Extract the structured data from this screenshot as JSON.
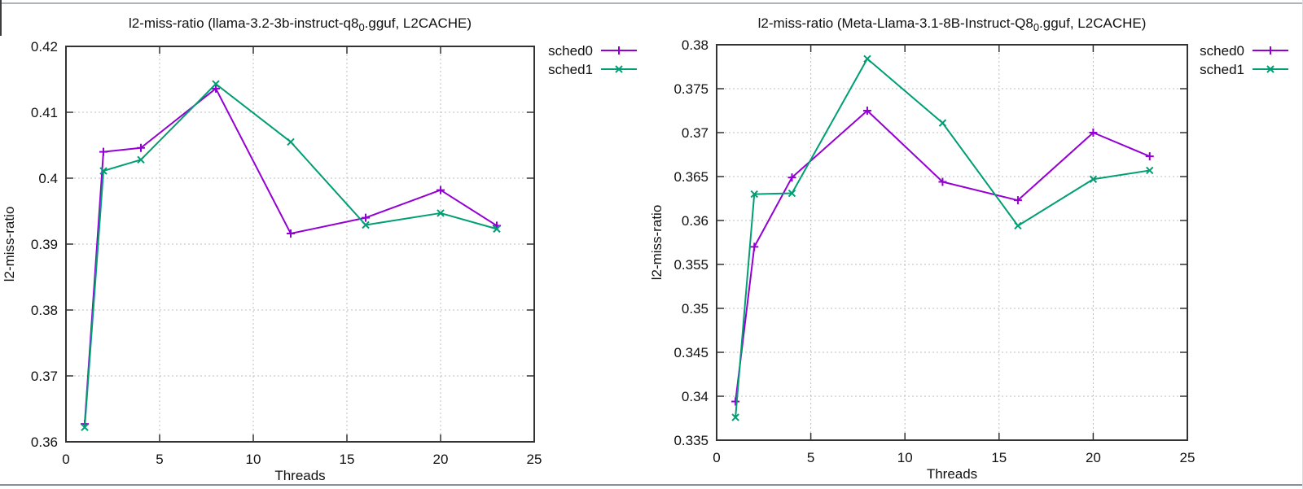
{
  "page": {
    "background": "#ffffff",
    "frame": {
      "top_line_color": "#adb4ba",
      "bottom_line_color": "#84919d",
      "left_edge_color": "#3c3c3c",
      "right_edge_color": "#d9dcde"
    }
  },
  "chart_data": [
    {
      "type": "line",
      "title": "l2-miss-ratio (llama-3.2-3b-instruct-q8_0.gguf, L2CACHE)",
      "title_pre": "l2-miss-ratio (llama-3.2-3b-instruct-q8",
      "title_sub": "0",
      "title_post": ".gguf, L2CACHE)",
      "xlabel": "Threads",
      "ylabel": "l2-miss-ratio",
      "xlim": [
        0,
        25
      ],
      "ylim": [
        0.36,
        0.42
      ],
      "xticks": [
        0,
        5,
        10,
        15,
        20,
        25
      ],
      "xtick_labels": [
        "0",
        "5",
        "10",
        "15",
        "20",
        "25"
      ],
      "yticks": [
        0.36,
        0.37,
        0.38,
        0.39,
        0.4,
        0.41,
        0.42
      ],
      "ytick_labels": [
        "0.36",
        "0.37",
        "0.38",
        "0.39",
        "0.4",
        "0.41",
        "0.42"
      ],
      "grid": true,
      "legend_position": "outside-top-right",
      "x": [
        1,
        2,
        4,
        8,
        12,
        16,
        20,
        23
      ],
      "series": [
        {
          "name": "sched0",
          "color": "#9400d3",
          "marker": "plus",
          "values": [
            0.3627,
            0.404,
            0.4046,
            0.4136,
            0.3916,
            0.394,
            0.3982,
            0.3928
          ]
        },
        {
          "name": "sched1",
          "color": "#009e73",
          "marker": "cross",
          "values": [
            0.3622,
            0.4011,
            0.4028,
            0.4143,
            0.4055,
            0.3929,
            0.3947,
            0.3923
          ]
        }
      ]
    },
    {
      "type": "line",
      "title": "l2-miss-ratio (Meta-Llama-3.1-8B-Instruct-Q8_0.gguf, L2CACHE)",
      "title_pre": "l2-miss-ratio (Meta-Llama-3.1-8B-Instruct-Q8",
      "title_sub": "0",
      "title_post": ".gguf, L2CACHE)",
      "xlabel": "Threads",
      "ylabel": "l2-miss-ratio",
      "xlim": [
        0,
        25
      ],
      "ylim": [
        0.335,
        0.38
      ],
      "xticks": [
        0,
        5,
        10,
        15,
        20,
        25
      ],
      "xtick_labels": [
        "0",
        "5",
        "10",
        "15",
        "20",
        "25"
      ],
      "yticks": [
        0.335,
        0.34,
        0.345,
        0.35,
        0.355,
        0.36,
        0.365,
        0.37,
        0.375,
        0.38
      ],
      "ytick_labels": [
        "0.335",
        "0.34",
        "0.345",
        "0.35",
        "0.355",
        "0.36",
        "0.365",
        "0.37",
        "0.375",
        "0.38"
      ],
      "grid": true,
      "legend_position": "outside-top-right",
      "x": [
        1,
        2,
        4,
        8,
        12,
        16,
        20,
        23
      ],
      "series": [
        {
          "name": "sched0",
          "color": "#9400d3",
          "marker": "plus",
          "values": [
            0.3394,
            0.357,
            0.3649,
            0.3725,
            0.3644,
            0.3623,
            0.37,
            0.3673
          ]
        },
        {
          "name": "sched1",
          "color": "#009e73",
          "marker": "cross",
          "values": [
            0.3376,
            0.363,
            0.3631,
            0.3784,
            0.3711,
            0.3594,
            0.3647,
            0.3657
          ]
        }
      ]
    }
  ]
}
